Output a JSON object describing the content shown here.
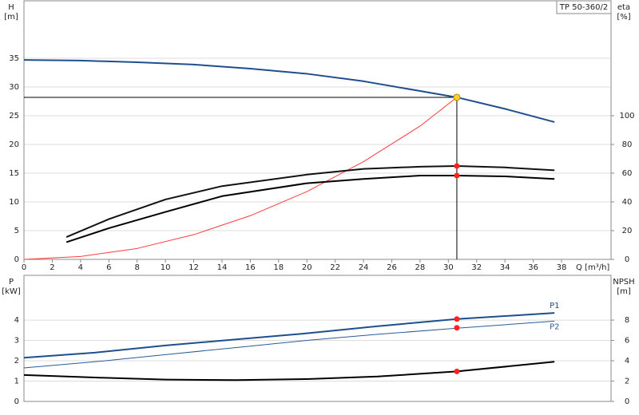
{
  "chart_data": [
    {
      "type": "line",
      "title": "TP 50-360/2",
      "ylabel": [
        "H",
        "[m]"
      ],
      "y2label": [
        "eta",
        "[%]"
      ],
      "xlabel": "Q [m³/h]",
      "xlim": [
        0,
        41.5
      ],
      "xticks": [
        0,
        2,
        4,
        6,
        8,
        10,
        12,
        14,
        16,
        18,
        20,
        22,
        24,
        26,
        28,
        30,
        32,
        34,
        36,
        38
      ],
      "ylim": [
        0,
        45
      ],
      "yticks": [
        0,
        5,
        10,
        15,
        20,
        25,
        30,
        35
      ],
      "y2lim": [
        0,
        180
      ],
      "y2ticks": [
        0,
        20,
        40,
        60,
        80,
        100
      ],
      "grid": true,
      "series": [
        {
          "color": "#1f4e8c",
          "x": [
            0,
            4,
            8,
            12,
            16,
            20,
            24,
            28,
            30.6,
            34,
            37.5
          ],
          "values": [
            34.7,
            34.6,
            34.3,
            33.9,
            33.2,
            32.3,
            31.0,
            29.3,
            28.2,
            26.2,
            23.9
          ]
        },
        {
          "color": "#ff3b3b",
          "x": [
            0,
            4,
            8,
            12,
            16,
            20,
            24,
            28,
            30.6
          ],
          "values": [
            0,
            0.5,
            1.9,
            4.3,
            7.6,
            11.8,
            17.0,
            23.2,
            28.2
          ]
        },
        {
          "color": "#111111",
          "axis": "y2",
          "x": [
            3,
            6,
            10,
            14,
            20,
            24,
            28,
            30.6,
            34,
            37.5
          ],
          "values": [
            15.5,
            28,
            41.7,
            51,
            59,
            63,
            64.5,
            65,
            64,
            62
          ]
        },
        {
          "color": "#000000",
          "axis": "y2",
          "x": [
            3,
            6,
            10,
            14,
            20,
            24,
            28,
            30.6,
            34,
            37.5
          ],
          "values": [
            12,
            21.7,
            33,
            44,
            53,
            56,
            58.3,
            58.3,
            57.8,
            56
          ]
        }
      ],
      "markers": [
        {
          "x": 30.6,
          "y": 65,
          "axis": "y2",
          "color": "#ff2020"
        },
        {
          "x": 30.6,
          "y": 58.3,
          "axis": "y2",
          "color": "#ff2020"
        }
      ],
      "operating_point": {
        "x": 30.6,
        "y": 28.2,
        "color": "#ffd21f"
      }
    },
    {
      "type": "line",
      "ylabel": [
        "P",
        "[kW]"
      ],
      "y2label": [
        "NPSH",
        "[m]"
      ],
      "xlim": [
        0,
        41.5
      ],
      "ylim": [
        0,
        6.2
      ],
      "yticks": [
        0,
        1,
        2,
        3,
        4
      ],
      "y2lim": [
        0,
        12.4
      ],
      "y2ticks": [
        0,
        2,
        4,
        6,
        8
      ],
      "grid": true,
      "series": [
        {
          "name": "P1",
          "color": "#1f4e8c",
          "x": [
            0,
            5,
            10,
            15,
            20,
            25,
            30.6,
            37.5
          ],
          "values": [
            2.15,
            2.4,
            2.75,
            3.05,
            3.35,
            3.7,
            4.05,
            4.35
          ]
        },
        {
          "name": "P2",
          "color": "#2a5a9a",
          "x": [
            0,
            5,
            10,
            15,
            20,
            25,
            30.6,
            37.5
          ],
          "values": [
            1.65,
            1.95,
            2.3,
            2.65,
            3.0,
            3.3,
            3.6,
            3.95
          ]
        },
        {
          "color": "#000000",
          "axis": "y2",
          "x": [
            0,
            5,
            10,
            15,
            20,
            25,
            30.6,
            37.5
          ],
          "values": [
            2.6,
            2.35,
            2.15,
            2.1,
            2.2,
            2.45,
            2.95,
            3.9
          ]
        }
      ],
      "markers": [
        {
          "x": 30.6,
          "y": 4.05,
          "color": "#ff2020"
        },
        {
          "x": 30.6,
          "y": 3.62,
          "color": "#ff2020"
        },
        {
          "x": 30.6,
          "y": 2.95,
          "axis": "y2",
          "color": "#ff2020"
        }
      ]
    }
  ]
}
